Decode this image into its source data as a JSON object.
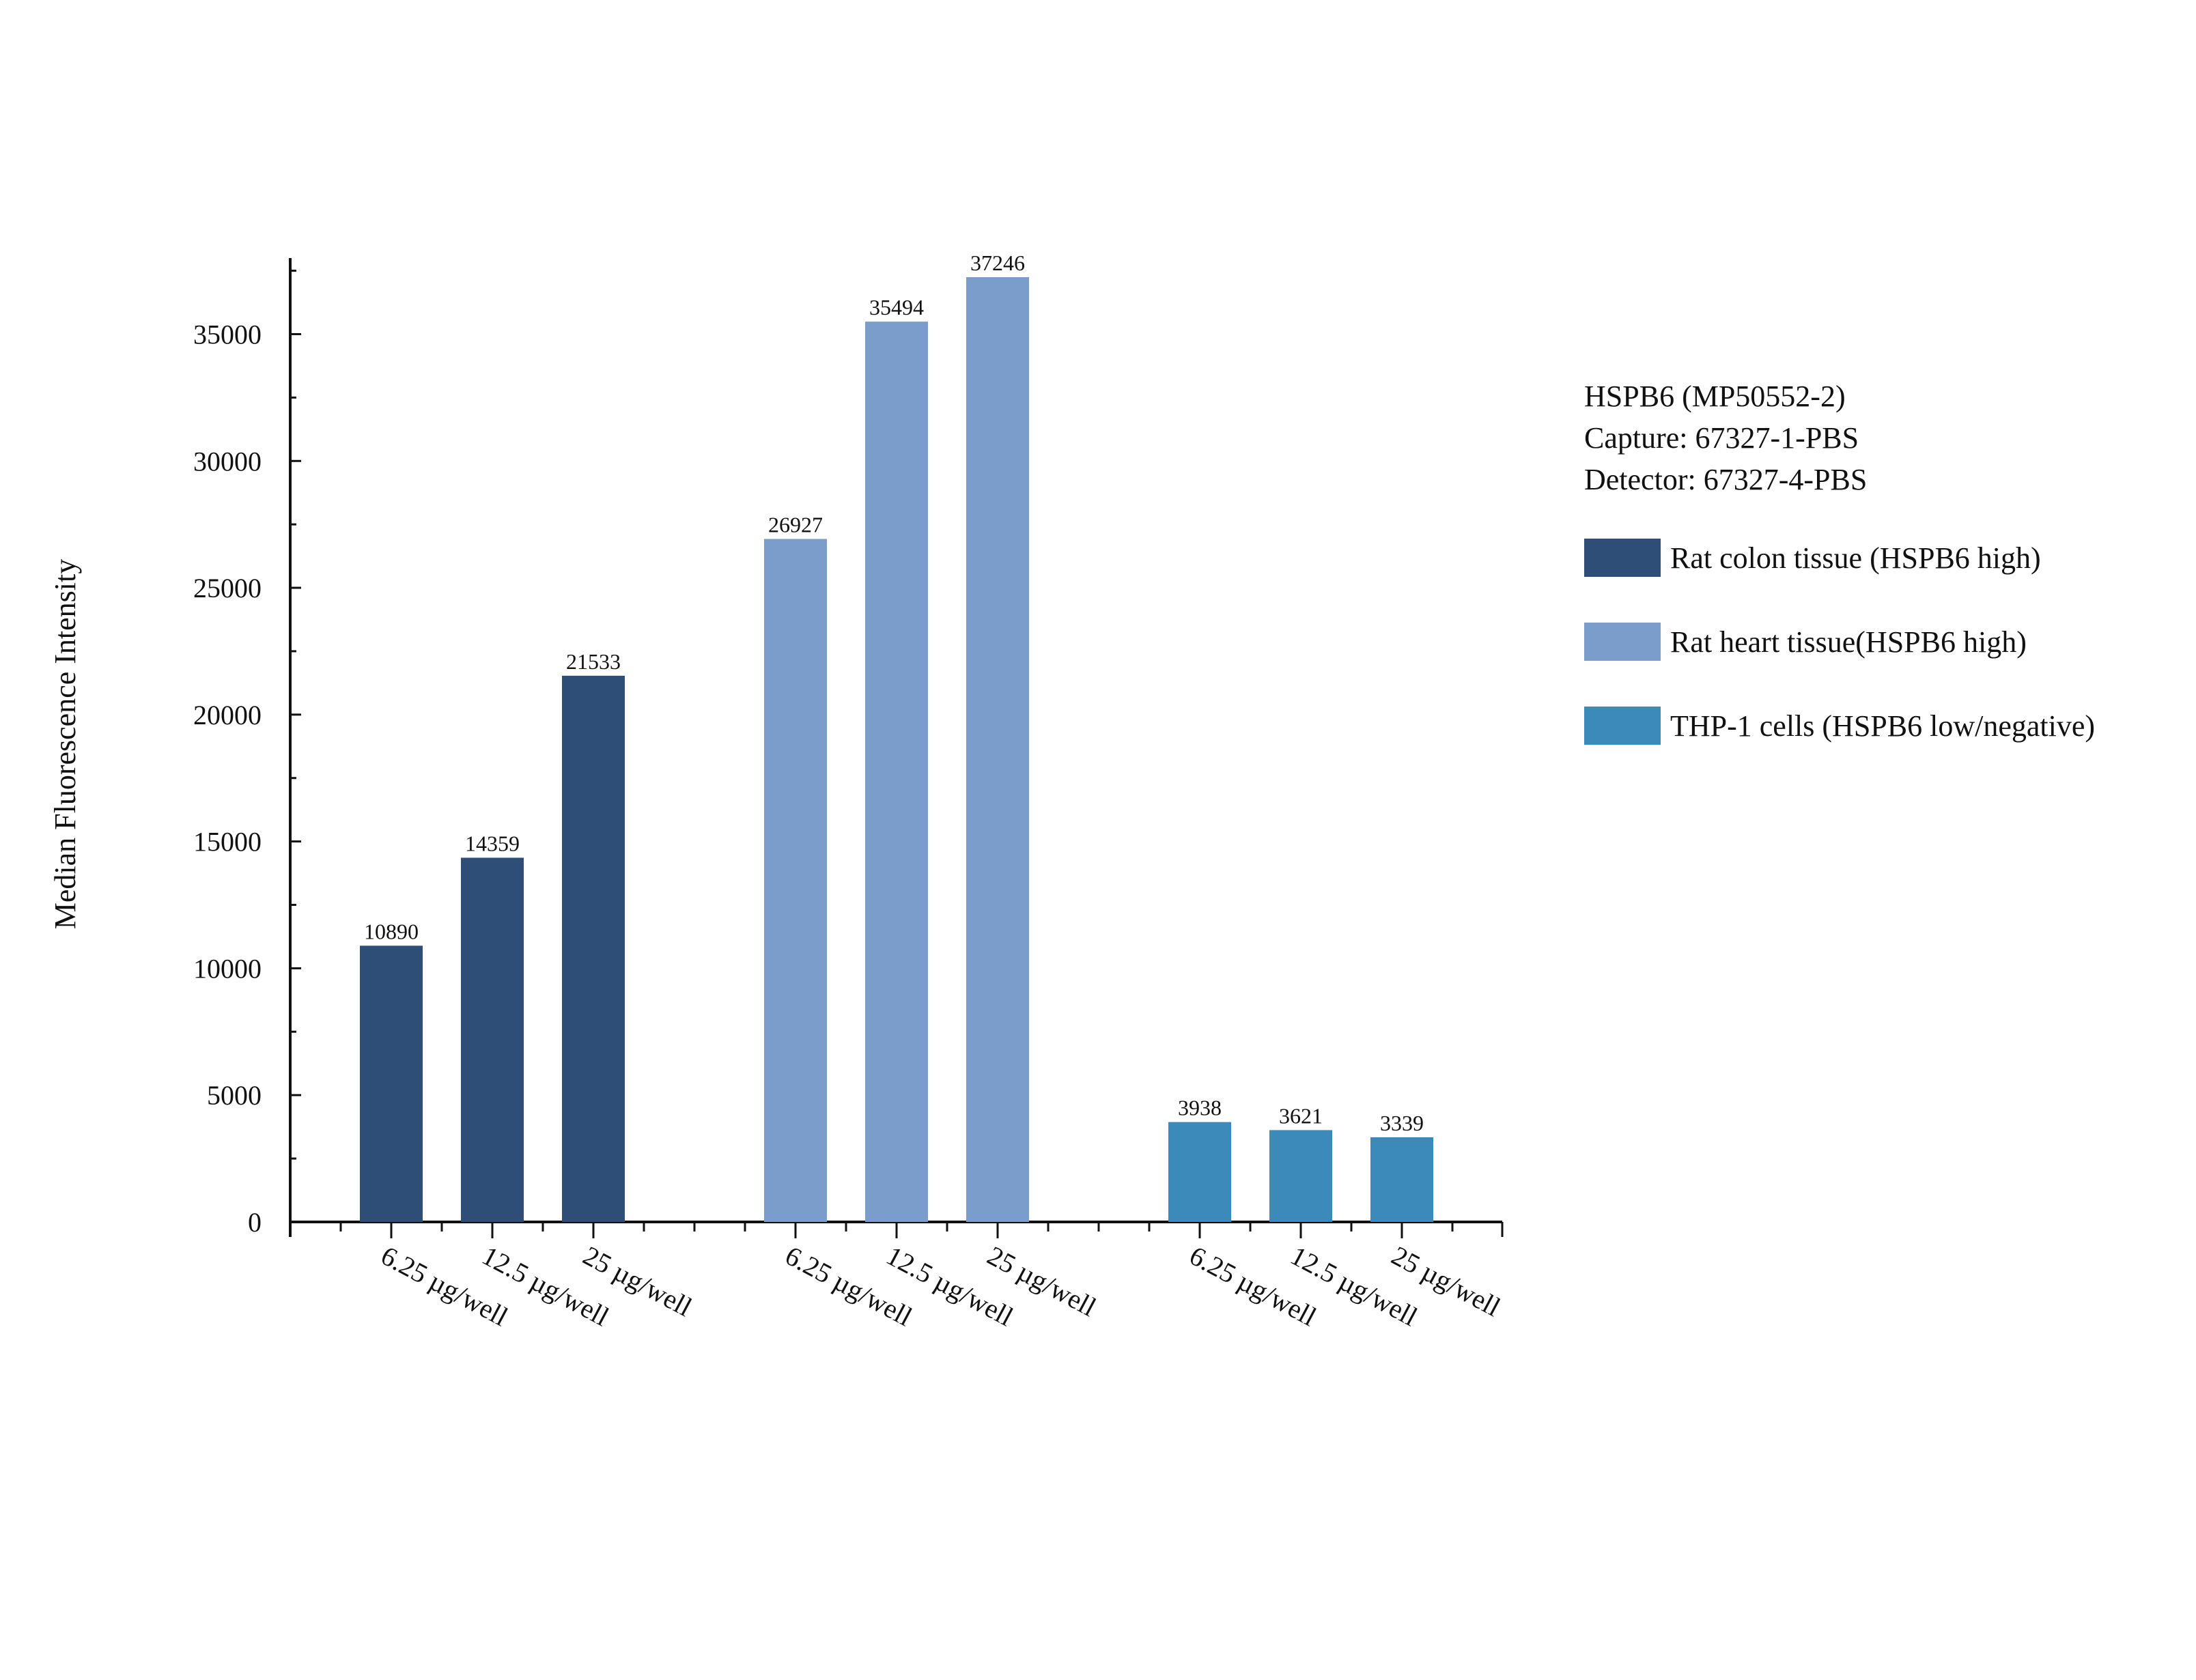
{
  "chart_data": {
    "type": "bar",
    "title": "",
    "ylabel": "Median Fluorescence Intensity",
    "xlabel": "",
    "ylim": [
      0,
      38000
    ],
    "yticks": [
      0,
      5000,
      10000,
      15000,
      20000,
      25000,
      30000,
      35000
    ],
    "ytick_labels": [
      "0",
      "5000",
      "10000",
      "15000",
      "20000",
      "25000",
      "30000",
      "35000"
    ],
    "categories": [
      "6.25 µg/well",
      "12.5 µg/well",
      "25 µg/well"
    ],
    "series": [
      {
        "name": "Rat colon tissue (HSPB6 high)",
        "color": "#2F4E77",
        "values": [
          10890,
          14359,
          21533
        ],
        "labels": [
          "10890",
          "14359",
          "21533"
        ]
      },
      {
        "name": "Rat heart tissue(HSPB6 high)",
        "color": "#7B9DCB",
        "values": [
          26927,
          35494,
          37246
        ],
        "labels": [
          "26927",
          "35494",
          "37246"
        ]
      },
      {
        "name": "THP-1 cells (HSPB6 low/negative)",
        "color": "#3C8ABA",
        "values": [
          3938,
          3621,
          3339
        ],
        "labels": [
          "3938",
          "3621",
          "3339"
        ]
      }
    ],
    "info_lines": [
      "HSPB6 (MP50552-2)",
      "Capture: 67327-1-PBS",
      "Detector: 67327-4-PBS"
    ],
    "legend_position": "right"
  }
}
